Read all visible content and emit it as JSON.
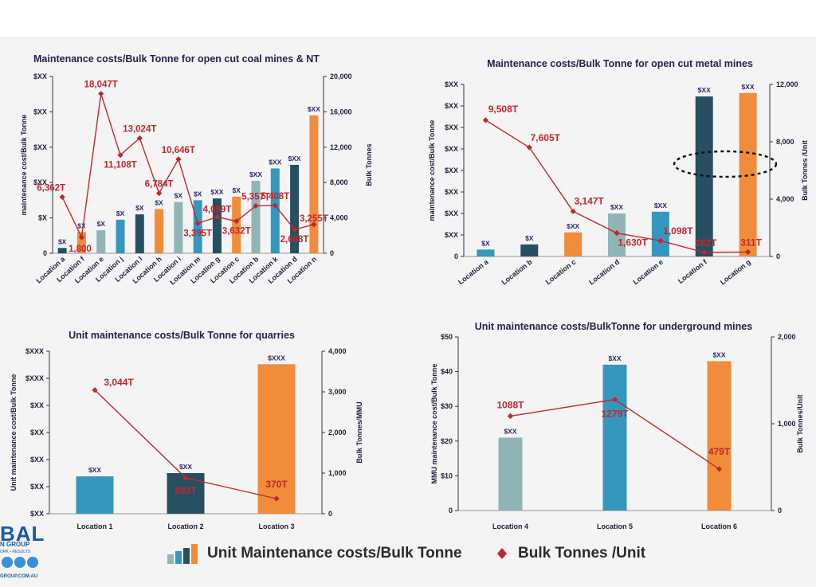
{
  "legend": {
    "bars_label": "Unit Maintenance costs/Bulk Tonne",
    "line_label": "Bulk Tonnes /Unit"
  },
  "logo": {
    "name": "BAL",
    "sub": "N GROUP",
    "tagline": "ORK • RESULTS",
    "web": "GROUP.COM.AU"
  },
  "chart_data": [
    {
      "id": "coal",
      "type": "bar",
      "title": "Maintenance costs/Bulk Tonne for open cut coal mines  &  NT",
      "ylabel": "maintenance cost/Bulk Tonne",
      "y2label": "Bulk Tonnes",
      "yticks": [
        "$XX",
        "$XX",
        "$XX",
        "$XX",
        "$X",
        "0"
      ],
      "y2ticks": [
        "20,000",
        "16,000",
        "12,000",
        "8,000",
        "4,000",
        "0"
      ],
      "y2lim": [
        0,
        20000
      ],
      "categories": [
        "Location a",
        "Location f",
        "Location e",
        "Location j",
        "Location l",
        "Location h",
        "Location i",
        "Location m",
        "Location g",
        "Location c",
        "Location b",
        "Location k",
        "Location d",
        "Location n"
      ],
      "bar_heights": [
        0.03,
        0.12,
        0.13,
        0.19,
        0.22,
        0.25,
        0.29,
        0.3,
        0.31,
        0.32,
        0.41,
        0.48,
        0.5,
        0.78
      ],
      "bar_labels": [
        "$X",
        "$X",
        "$X",
        "$X",
        "$X",
        "$X",
        "$X",
        "$X",
        "$XX",
        "$X",
        "$XX",
        "$XX",
        "$XX",
        "$XX"
      ],
      "bar_colors": [
        "#264f62",
        "#f08c3a",
        "#8fb5b6",
        "#3597bd",
        "#264f62",
        "#f08c3a",
        "#8fb5b6",
        "#3597bd",
        "#264f62",
        "#f08c3a",
        "#8fb5b6",
        "#3597bd",
        "#264f62",
        "#f08c3a"
      ],
      "line_values": [
        6362,
        1800,
        18047,
        11108,
        13024,
        6784,
        10646,
        3395,
        4099,
        3632,
        5357,
        5408,
        2688,
        3255
      ],
      "line_labels": [
        "6,362T",
        "1,800",
        "18,047T",
        "11,108T",
        "13,024T",
        "6,784T",
        "10,646T",
        "3,395T",
        "4,099T",
        "3,632T",
        "5,357T",
        "5,408T",
        "2,688T",
        "3,255T"
      ]
    },
    {
      "id": "metal",
      "type": "bar",
      "title": "Maintenance costs/Bulk Tonne for open cut metal mines",
      "ylabel": "maintenance cost/Bulk Tonne",
      "y2label": "Bulk Tonnes  /Unit",
      "yticks": [
        "$XX",
        "$XX",
        "$XX",
        "$XX",
        "$XX",
        "$XX",
        "$XX",
        "$XX",
        "0"
      ],
      "y2ticks": [
        "12,000",
        "8,000",
        "4,000",
        "0"
      ],
      "y2lim": [
        0,
        12000
      ],
      "categories": [
        "Location a",
        "Location b",
        "Location c",
        "Location d",
        "Location e",
        "Location f",
        "Location g"
      ],
      "bar_heights": [
        0.04,
        0.07,
        0.14,
        0.25,
        0.26,
        0.93,
        0.95
      ],
      "bar_labels": [
        "$X",
        "$X",
        "$XX",
        "$XX",
        "$XX",
        "$XX",
        "$XX"
      ],
      "bar_colors": [
        "#3597bd",
        "#264f62",
        "#f08c3a",
        "#8fb5b6",
        "#3597bd",
        "#264f62",
        "#f08c3a"
      ],
      "line_values": [
        9508,
        7605,
        3147,
        1630,
        1098,
        282,
        311
      ],
      "line_labels": [
        "9,508T",
        "7,605T",
        "3,147T",
        "1,630T",
        "1,098T",
        "282T",
        "311T"
      ]
    },
    {
      "id": "quarries",
      "type": "bar",
      "title": "Unit maintenance  costs/Bulk Tonne for quarries",
      "ylabel": "Unit maintenance cost/Bulk Tonne",
      "y2label": "Bulk Tonnes/MMU",
      "yticks": [
        "$XXX",
        "$XXX",
        "$XX",
        "$XX",
        "$XX",
        "$XX",
        "$XX"
      ],
      "y2ticks": [
        "4,000",
        "3,000",
        "2,000",
        "1,000",
        "0"
      ],
      "y2lim": [
        0,
        4000
      ],
      "categories": [
        "Location 1",
        "Location 2",
        "Location 3"
      ],
      "bar_heights": [
        0.23,
        0.25,
        0.92
      ],
      "bar_labels": [
        "$XX",
        "$XX",
        "$XXX"
      ],
      "bar_colors": [
        "#3597bd",
        "#264f62",
        "#f08c3a"
      ],
      "line_values": [
        3044,
        883,
        370
      ],
      "line_labels": [
        "3,044T",
        "883T",
        "370T"
      ]
    },
    {
      "id": "underground",
      "type": "bar",
      "title": "Unit maintenance costs/BulkTonne for underground mines",
      "ylabel": "MMU maintenance cost/Bulk Tonne",
      "y2label": "Bulk Tonnes/Unit",
      "yticks": [
        "$50",
        "$40",
        "$30",
        "$20",
        "$10",
        "0"
      ],
      "y2ticks": [
        "2,000",
        "1,000",
        "0"
      ],
      "ylim": [
        0,
        50
      ],
      "y2lim": [
        0,
        2000
      ],
      "categories": [
        "Location 4",
        "Location 5",
        "Location 6"
      ],
      "values": [
        21,
        42,
        43
      ],
      "bar_labels": [
        "$XX",
        "$XX",
        "$XX"
      ],
      "bar_colors": [
        "#8fb5b6",
        "#3597bd",
        "#f08c3a"
      ],
      "line_values": [
        1088,
        1279,
        479
      ],
      "line_labels": [
        "1088T",
        "1279T",
        "479T"
      ]
    }
  ]
}
